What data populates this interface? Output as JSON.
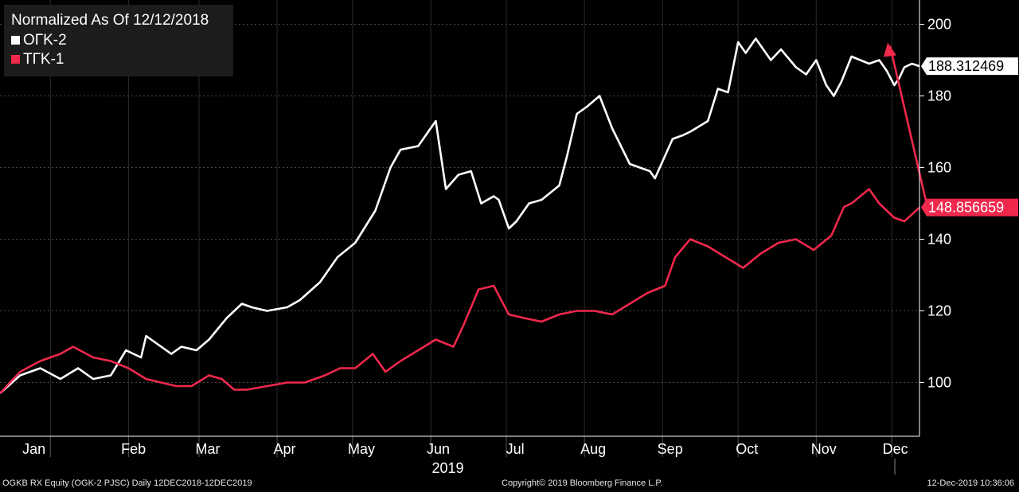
{
  "chart_data": {
    "type": "line",
    "legend_title": "Normalized As Of 12/12/2018",
    "legend_placement": "top-left",
    "x_labels": [
      "Jan",
      "Feb",
      "Mar",
      "Apr",
      "May",
      "Jun",
      "Jul",
      "Aug",
      "Sep",
      "Oct",
      "Nov",
      "Dec"
    ],
    "year_label": "2019",
    "xlim": [
      "2018-12-12",
      "2019-12-12"
    ],
    "ylim": [
      85,
      205
    ],
    "y_ticks": [
      100,
      120,
      140,
      160,
      180,
      200
    ],
    "y_axis_side": "right",
    "grid": "dashed",
    "series": [
      {
        "name": "OГK-2",
        "color": "#ffffff",
        "last_value_label": "188.312469",
        "x": [
          "2018-12-12",
          "2018-12-20",
          "2018-12-28",
          "2019-01-05",
          "2019-01-12",
          "2019-01-18",
          "2019-01-25",
          "2019-01-31",
          "2019-02-06",
          "2019-02-08",
          "2019-02-14",
          "2019-02-18",
          "2019-02-22",
          "2019-02-28",
          "2019-03-05",
          "2019-03-12",
          "2019-03-18",
          "2019-03-22",
          "2019-03-28",
          "2019-04-05",
          "2019-04-10",
          "2019-04-18",
          "2019-04-25",
          "2019-05-02",
          "2019-05-10",
          "2019-05-16",
          "2019-05-20",
          "2019-05-27",
          "2019-06-03",
          "2019-06-07",
          "2019-06-12",
          "2019-06-17",
          "2019-06-21",
          "2019-06-26",
          "2019-06-28",
          "2019-07-02",
          "2019-07-05",
          "2019-07-10",
          "2019-07-15",
          "2019-07-22",
          "2019-07-25",
          "2019-07-29",
          "2019-08-02",
          "2019-08-07",
          "2019-08-12",
          "2019-08-19",
          "2019-08-27",
          "2019-08-29",
          "2019-09-05",
          "2019-09-09",
          "2019-09-12",
          "2019-09-19",
          "2019-09-23",
          "2019-09-27",
          "2019-10-01",
          "2019-10-04",
          "2019-10-08",
          "2019-10-14",
          "2019-10-18",
          "2019-10-24",
          "2019-10-28",
          "2019-11-01",
          "2019-11-05",
          "2019-11-08",
          "2019-11-11",
          "2019-11-15",
          "2019-11-22",
          "2019-11-26",
          "2019-11-29",
          "2019-12-02",
          "2019-12-04",
          "2019-12-06",
          "2019-12-09",
          "2019-12-12"
        ],
        "y": [
          97,
          102,
          104,
          101,
          104,
          101,
          102,
          109,
          107,
          113,
          110,
          108,
          110,
          109,
          112,
          118,
          122,
          121,
          120,
          121,
          123,
          128,
          135,
          139,
          148,
          160,
          165,
          166,
          173,
          154,
          158,
          159,
          150,
          152,
          151,
          143,
          145,
          150,
          151,
          155,
          163,
          175,
          177,
          180,
          171,
          161,
          159,
          157,
          168,
          169,
          170,
          173,
          182,
          181,
          195,
          192,
          196,
          190,
          193,
          188,
          186,
          190,
          183,
          180,
          184,
          191,
          189,
          190,
          187,
          183,
          185,
          188,
          189,
          188.31
        ]
      },
      {
        "name": "TГK-1",
        "color": "#f0284c",
        "last_value_label": "148.856659",
        "x": [
          "2018-12-12",
          "2018-12-20",
          "2018-12-28",
          "2019-01-05",
          "2019-01-10",
          "2019-01-18",
          "2019-01-25",
          "2019-02-01",
          "2019-02-08",
          "2019-02-14",
          "2019-02-20",
          "2019-02-26",
          "2019-03-05",
          "2019-03-10",
          "2019-03-15",
          "2019-03-20",
          "2019-03-28",
          "2019-04-05",
          "2019-04-12",
          "2019-04-20",
          "2019-04-26",
          "2019-05-02",
          "2019-05-09",
          "2019-05-14",
          "2019-05-20",
          "2019-05-27",
          "2019-06-03",
          "2019-06-10",
          "2019-06-14",
          "2019-06-20",
          "2019-06-26",
          "2019-07-02",
          "2019-07-08",
          "2019-07-15",
          "2019-07-22",
          "2019-07-29",
          "2019-08-05",
          "2019-08-12",
          "2019-08-19",
          "2019-08-26",
          "2019-09-02",
          "2019-09-06",
          "2019-09-12",
          "2019-09-19",
          "2019-09-26",
          "2019-10-03",
          "2019-10-10",
          "2019-10-17",
          "2019-10-24",
          "2019-10-31",
          "2019-11-07",
          "2019-11-12",
          "2019-11-15",
          "2019-11-22",
          "2019-11-26",
          "2019-11-29",
          "2019-12-02",
          "2019-12-06",
          "2019-12-12"
        ],
        "y": [
          97,
          103,
          106,
          108,
          110,
          107,
          106,
          104,
          101,
          100,
          99,
          99,
          102,
          101,
          98,
          98,
          99,
          100,
          100,
          102,
          104,
          104,
          108,
          103,
          106,
          109,
          112,
          110,
          116,
          126,
          127,
          119,
          118,
          117,
          119,
          120,
          120,
          119,
          122,
          125,
          127,
          135,
          140,
          138,
          135,
          132,
          136,
          139,
          140,
          137,
          141,
          149,
          150,
          154,
          150,
          148,
          146,
          145,
          148.86
        ]
      }
    ]
  },
  "footer": {
    "left": "OGKB RX Equity (OGK-2 PJSC)  Daily 12DEC2018-12DEC2019",
    "center": "Copyright© 2019 Bloomberg Finance L.P.",
    "right": "12-Dec-2019 10:36:06"
  }
}
